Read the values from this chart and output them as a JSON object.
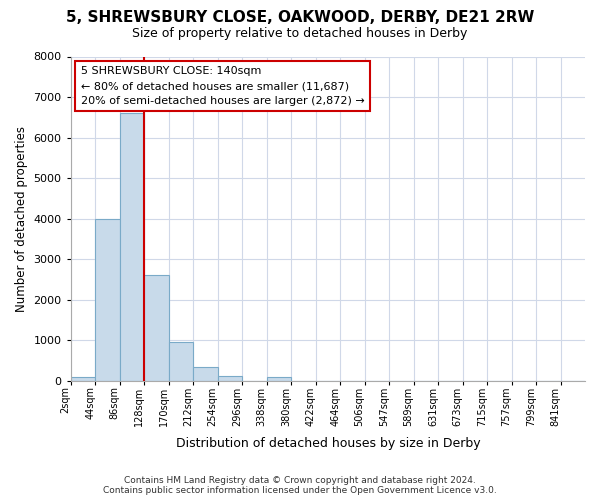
{
  "title": "5, SHREWSBURY CLOSE, OAKWOOD, DERBY, DE21 2RW",
  "subtitle": "Size of property relative to detached houses in Derby",
  "xlabel": "Distribution of detached houses by size in Derby",
  "ylabel": "Number of detached properties",
  "footer_line1": "Contains HM Land Registry data © Crown copyright and database right 2024.",
  "footer_line2": "Contains public sector information licensed under the Open Government Licence v3.0.",
  "bin_labels": [
    "2sqm",
    "44sqm",
    "86sqm",
    "128sqm",
    "170sqm",
    "212sqm",
    "254sqm",
    "296sqm",
    "338sqm",
    "380sqm",
    "422sqm",
    "464sqm",
    "506sqm",
    "547sqm",
    "589sqm",
    "631sqm",
    "673sqm",
    "715sqm",
    "757sqm",
    "799sqm",
    "841sqm"
  ],
  "bar_values": [
    100,
    4000,
    6600,
    2600,
    950,
    330,
    130,
    0,
    100,
    0,
    0,
    0,
    0,
    0,
    0,
    0,
    0,
    0,
    0,
    0,
    0
  ],
  "bar_color": "#c8daea",
  "bar_edge_color": "#7aaac8",
  "ylim": [
    0,
    8000
  ],
  "yticks": [
    0,
    1000,
    2000,
    3000,
    4000,
    5000,
    6000,
    7000,
    8000
  ],
  "annotation_line1": "5 SHREWSBURY CLOSE: 140sqm",
  "annotation_line2": "← 80% of detached houses are smaller (11,687)",
  "annotation_line3": "20% of semi-detached houses are larger (2,872) →",
  "vline_color": "#cc0000",
  "annotation_box_edgecolor": "#cc0000",
  "grid_color": "#d0d8e8",
  "background_color": "#ffffff",
  "plot_bg_color": "#ffffff",
  "title_fontsize": 11,
  "subtitle_fontsize": 9
}
